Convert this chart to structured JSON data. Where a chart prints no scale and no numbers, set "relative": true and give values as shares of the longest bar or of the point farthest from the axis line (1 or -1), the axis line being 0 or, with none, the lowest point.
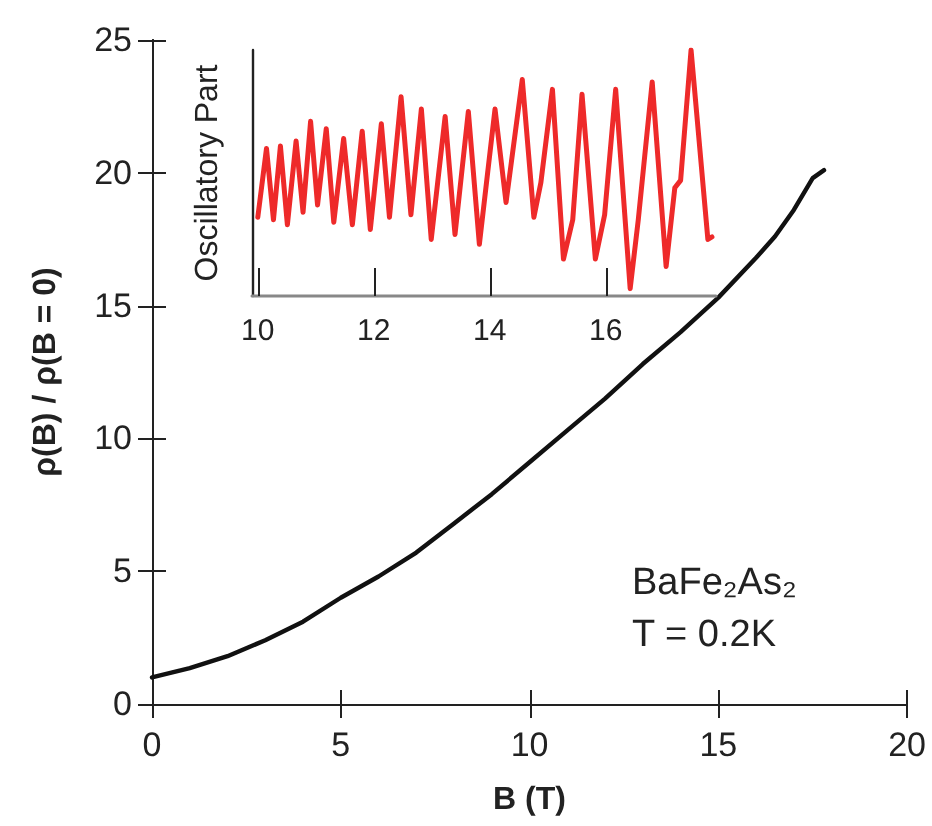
{
  "chart_data": [
    {
      "type": "line",
      "xlabel": "B (T)",
      "ylabel": "ρ(B) / ρ(B = 0)",
      "xlim": [
        0,
        20
      ],
      "ylim": [
        0,
        25
      ],
      "xticks": [
        0,
        5,
        10,
        15,
        20
      ],
      "yticks": [
        0,
        5,
        10,
        15,
        20,
        25
      ],
      "grid": false,
      "marker": "none",
      "line_style": "solid",
      "annotations": [
        "BaFe₂As₂",
        "T = 0.2K"
      ],
      "series": [
        {
          "color": "#111111",
          "x": [
            0,
            1,
            2,
            3,
            4,
            5,
            6,
            7,
            8,
            9,
            10,
            11,
            12,
            13,
            14,
            15,
            16,
            16.5,
            17,
            17.5,
            17.8
          ],
          "values": [
            1.0,
            1.35,
            1.8,
            2.4,
            3.1,
            4.0,
            4.8,
            5.7,
            6.8,
            7.9,
            9.1,
            10.3,
            11.5,
            12.8,
            14.0,
            15.3,
            16.8,
            17.6,
            18.6,
            19.8,
            20.1
          ]
        }
      ]
    },
    {
      "type": "line",
      "ylabel": "Oscillatory Part",
      "xlim": [
        9.9,
        17.9
      ],
      "xticks": [
        10,
        12,
        14,
        16
      ],
      "relative": true,
      "grid": false,
      "marker": "none",
      "line_style": "solid",
      "series": [
        {
          "color": "#ee2a2a",
          "x": [
            10.0,
            10.15,
            10.27,
            10.39,
            10.51,
            10.66,
            10.78,
            10.91,
            11.03,
            11.18,
            11.31,
            11.48,
            11.63,
            11.8,
            11.94,
            12.13,
            12.27,
            12.47,
            12.64,
            12.82,
            12.99,
            13.23,
            13.4,
            13.63,
            13.82,
            14.09,
            14.28,
            14.56,
            14.76,
            14.88,
            15.08,
            15.27,
            15.43,
            15.59,
            15.82,
            15.98,
            16.17,
            16.42,
            16.56,
            16.8,
            17.04,
            17.19,
            17.29,
            17.47,
            17.76,
            17.83
          ],
          "values": [
            0.32,
            0.6,
            0.31,
            0.61,
            0.29,
            0.63,
            0.34,
            0.71,
            0.37,
            0.68,
            0.3,
            0.64,
            0.29,
            0.67,
            0.27,
            0.7,
            0.32,
            0.81,
            0.33,
            0.76,
            0.23,
            0.73,
            0.25,
            0.75,
            0.21,
            0.76,
            0.38,
            0.88,
            0.32,
            0.46,
            0.84,
            0.15,
            0.31,
            0.82,
            0.15,
            0.33,
            0.84,
            0.03,
            0.31,
            0.87,
            0.12,
            0.44,
            0.47,
            1.0,
            0.23,
            0.24
          ]
        }
      ]
    }
  ]
}
